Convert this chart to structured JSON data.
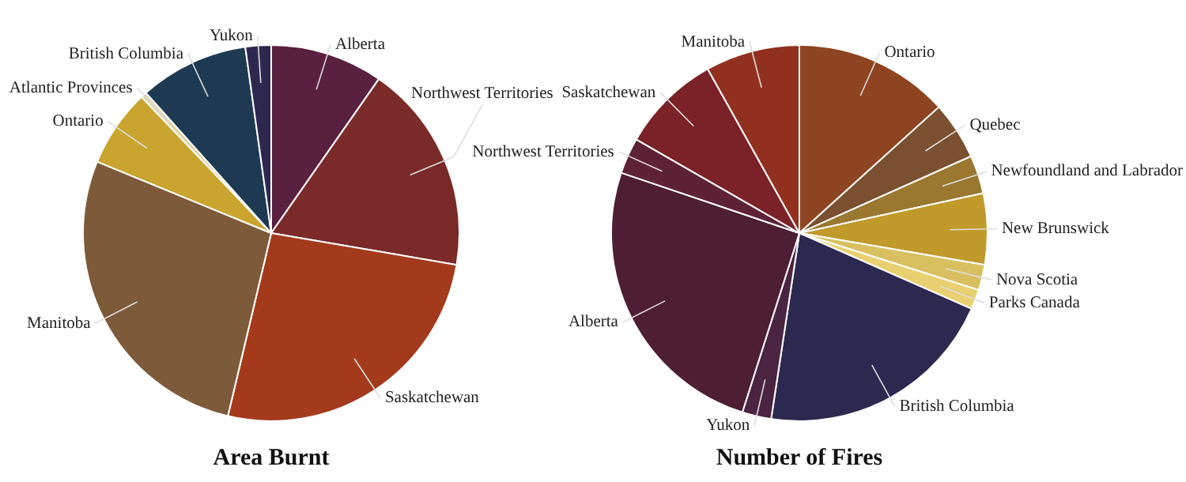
{
  "chart_data": [
    {
      "type": "pie",
      "title": "Area Burnt",
      "legend": false,
      "categories": [
        "Alberta",
        "Northwest Territories",
        "Saskatchewan",
        "Manitoba",
        "Ontario",
        "Atlantic Provinces",
        "British Columbia",
        "Yukon"
      ],
      "values": [
        9.7,
        18,
        26,
        27.5,
        6.7,
        0.5,
        9.4,
        2.2
      ],
      "colors": [
        "#5a2040",
        "#7a2a28",
        "#a33a1c",
        "#7d5a3a",
        "#c9a42e",
        "#e0d0a0",
        "#1e3a52",
        "#2e2850"
      ]
    },
    {
      "type": "pie",
      "title": "Number of Fires",
      "legend": false,
      "categories": [
        "Ontario",
        "Quebec",
        "Newfoundland and Labrador",
        "New Brunswick",
        "Nova Scotia",
        "Parks Canada",
        "British Columbia",
        "Yukon",
        "Alberta",
        "Northwest Territories",
        "Saskatchewan",
        "Manitoba"
      ],
      "values": [
        13.3,
        5,
        3.3,
        6.1,
        2.2,
        1.7,
        20.8,
        2.5,
        25.3,
        3.1,
        8.6,
        8.1
      ],
      "colors": [
        "#8e4420",
        "#7a5030",
        "#9a7830",
        "#c09a2a",
        "#d8c060",
        "#e8d070",
        "#2c2850",
        "#4a2440",
        "#4e1e32",
        "#5e2236",
        "#7a2228",
        "#923020"
      ]
    }
  ]
}
